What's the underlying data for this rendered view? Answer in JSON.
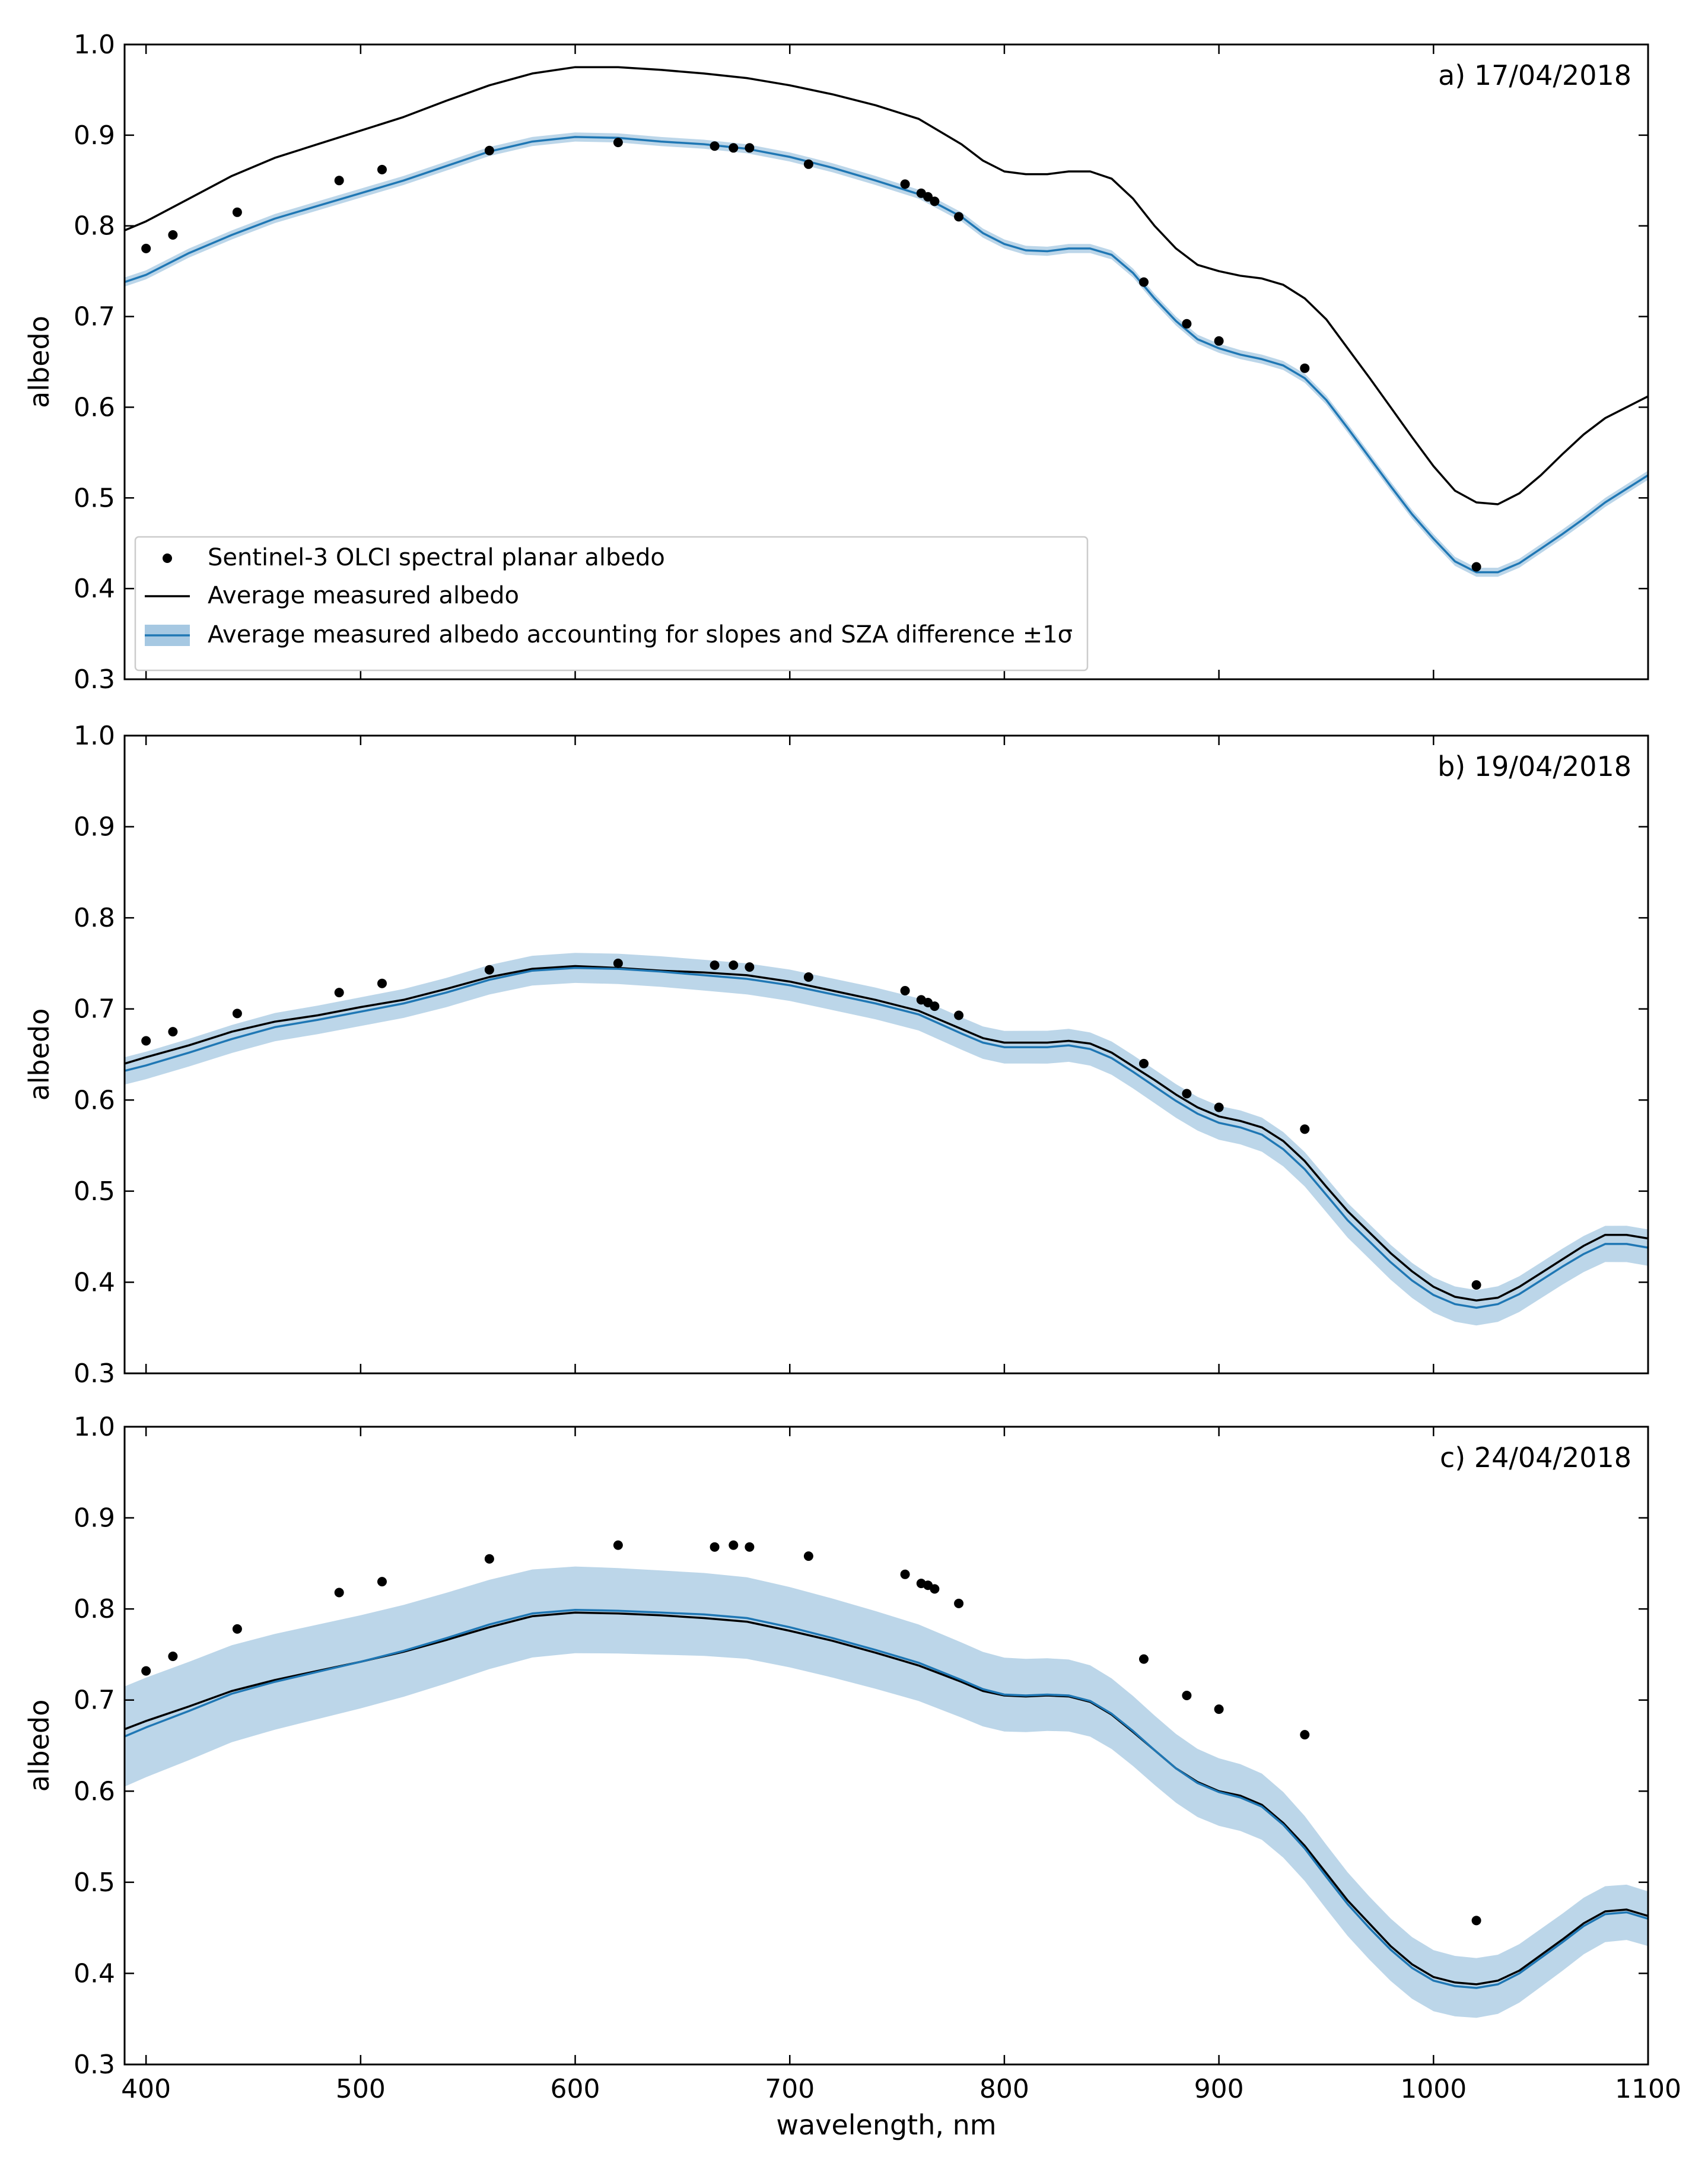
{
  "chart_data": {
    "type": "line",
    "xlabel": "wavelength, nm",
    "ylabel": "albedo",
    "xlim": [
      390,
      1100
    ],
    "ylim": [
      0.3,
      1.0
    ],
    "xticks": [
      400,
      500,
      600,
      700,
      800,
      900,
      1000,
      1100
    ],
    "yticks": [
      0.3,
      0.4,
      0.5,
      0.6,
      0.7,
      0.8,
      0.9,
      1.0
    ],
    "legend": {
      "placement": "lower-left of panel a",
      "entries": [
        "Sentinel-3 OLCI spectral planar albedo",
        "Average measured albedo",
        "Average measured albedo accounting for slopes and SZA difference ±1σ"
      ]
    },
    "colors": {
      "measured": "#000000",
      "corrected": "#1f77b4",
      "band": "#a6c8e2",
      "olci": "#000000"
    },
    "olci_wavelengths": [
      400,
      412.5,
      442.5,
      490,
      510,
      560,
      620,
      665,
      673.75,
      681.25,
      708.75,
      753.75,
      761.25,
      764.375,
      767.5,
      778.75,
      865,
      885,
      900,
      940,
      1020
    ],
    "panels": [
      {
        "label": "a) 17/04/2018",
        "olci_albedo": [
          0.775,
          0.79,
          0.815,
          0.85,
          0.862,
          0.883,
          0.892,
          0.888,
          0.886,
          0.886,
          0.868,
          0.846,
          0.836,
          0.832,
          0.827,
          0.81,
          0.738,
          0.692,
          0.673,
          0.643,
          0.424
        ],
        "measured": {
          "x": [
            390,
            400,
            420,
            440,
            460,
            480,
            500,
            520,
            540,
            560,
            580,
            600,
            620,
            640,
            660,
            680,
            700,
            720,
            740,
            760,
            780,
            790,
            800,
            810,
            820,
            830,
            840,
            850,
            860,
            870,
            880,
            890,
            900,
            910,
            920,
            930,
            940,
            950,
            960,
            970,
            980,
            990,
            1000,
            1010,
            1020,
            1030,
            1040,
            1050,
            1060,
            1070,
            1080,
            1090,
            1100
          ],
          "y": [
            0.795,
            0.805,
            0.83,
            0.855,
            0.875,
            0.89,
            0.905,
            0.92,
            0.938,
            0.955,
            0.968,
            0.975,
            0.975,
            0.972,
            0.968,
            0.963,
            0.955,
            0.945,
            0.933,
            0.918,
            0.89,
            0.872,
            0.86,
            0.857,
            0.857,
            0.86,
            0.86,
            0.852,
            0.83,
            0.8,
            0.775,
            0.757,
            0.75,
            0.745,
            0.742,
            0.735,
            0.72,
            0.697,
            0.665,
            0.633,
            0.6,
            0.567,
            0.535,
            0.508,
            0.495,
            0.493,
            0.505,
            0.525,
            0.548,
            0.57,
            0.588,
            0.6,
            0.612
          ]
        },
        "corrected": {
          "x": [
            390,
            400,
            420,
            440,
            460,
            480,
            500,
            520,
            540,
            560,
            580,
            600,
            620,
            640,
            660,
            680,
            700,
            720,
            740,
            760,
            780,
            790,
            800,
            810,
            820,
            830,
            840,
            850,
            860,
            870,
            880,
            890,
            900,
            910,
            920,
            930,
            940,
            950,
            960,
            970,
            980,
            990,
            1000,
            1010,
            1020,
            1030,
            1040,
            1050,
            1060,
            1070,
            1080,
            1090,
            1100
          ],
          "y": [
            0.738,
            0.746,
            0.77,
            0.79,
            0.808,
            0.822,
            0.836,
            0.85,
            0.866,
            0.882,
            0.893,
            0.898,
            0.897,
            0.893,
            0.89,
            0.885,
            0.876,
            0.864,
            0.85,
            0.835,
            0.81,
            0.792,
            0.78,
            0.773,
            0.772,
            0.775,
            0.775,
            0.768,
            0.748,
            0.72,
            0.695,
            0.675,
            0.665,
            0.658,
            0.653,
            0.646,
            0.632,
            0.608,
            0.577,
            0.545,
            0.513,
            0.482,
            0.455,
            0.43,
            0.418,
            0.418,
            0.428,
            0.444,
            0.46,
            0.477,
            0.495,
            0.51,
            0.525
          ]
        },
        "sigma": [
          0.005,
          0.005
        ]
      },
      {
        "label": "b) 19/04/2018",
        "olci_albedo": [
          0.665,
          0.675,
          0.695,
          0.718,
          0.728,
          0.743,
          0.75,
          0.748,
          0.748,
          0.746,
          0.735,
          0.72,
          0.71,
          0.707,
          0.703,
          0.693,
          0.64,
          0.607,
          0.592,
          0.568,
          0.397
        ],
        "measured": {
          "x": [
            390,
            400,
            420,
            440,
            460,
            480,
            500,
            520,
            540,
            560,
            580,
            600,
            620,
            640,
            660,
            680,
            700,
            720,
            740,
            760,
            780,
            790,
            800,
            810,
            820,
            830,
            840,
            850,
            860,
            870,
            880,
            890,
            900,
            910,
            920,
            930,
            940,
            950,
            960,
            970,
            980,
            990,
            1000,
            1010,
            1020,
            1030,
            1040,
            1050,
            1060,
            1070,
            1080,
            1090,
            1100
          ],
          "y": [
            0.64,
            0.647,
            0.66,
            0.675,
            0.686,
            0.693,
            0.702,
            0.71,
            0.722,
            0.735,
            0.744,
            0.747,
            0.745,
            0.742,
            0.74,
            0.737,
            0.73,
            0.72,
            0.71,
            0.698,
            0.678,
            0.668,
            0.663,
            0.663,
            0.663,
            0.665,
            0.662,
            0.652,
            0.637,
            0.622,
            0.606,
            0.592,
            0.582,
            0.577,
            0.57,
            0.555,
            0.533,
            0.505,
            0.478,
            0.455,
            0.432,
            0.412,
            0.395,
            0.384,
            0.38,
            0.383,
            0.395,
            0.41,
            0.425,
            0.44,
            0.452,
            0.452,
            0.448
          ]
        },
        "corrected": {
          "x": [
            390,
            400,
            420,
            440,
            460,
            480,
            500,
            520,
            540,
            560,
            580,
            600,
            620,
            640,
            660,
            680,
            700,
            720,
            740,
            760,
            780,
            790,
            800,
            810,
            820,
            830,
            840,
            850,
            860,
            870,
            880,
            890,
            900,
            910,
            920,
            930,
            940,
            950,
            960,
            970,
            980,
            990,
            1000,
            1010,
            1020,
            1030,
            1040,
            1050,
            1060,
            1070,
            1080,
            1090,
            1100
          ],
          "y": [
            0.632,
            0.638,
            0.652,
            0.667,
            0.68,
            0.688,
            0.697,
            0.706,
            0.718,
            0.732,
            0.742,
            0.745,
            0.744,
            0.741,
            0.737,
            0.733,
            0.726,
            0.716,
            0.706,
            0.694,
            0.673,
            0.663,
            0.658,
            0.658,
            0.658,
            0.66,
            0.656,
            0.646,
            0.631,
            0.615,
            0.599,
            0.585,
            0.575,
            0.57,
            0.562,
            0.546,
            0.524,
            0.496,
            0.468,
            0.445,
            0.422,
            0.402,
            0.386,
            0.376,
            0.372,
            0.376,
            0.387,
            0.402,
            0.417,
            0.431,
            0.442,
            0.442,
            0.438
          ]
        },
        "sigma": [
          0.015,
          0.02
        ]
      },
      {
        "label": "c) 24/04/2018",
        "olci_albedo": [
          0.732,
          0.748,
          0.778,
          0.818,
          0.83,
          0.855,
          0.87,
          0.868,
          0.87,
          0.868,
          0.858,
          0.838,
          0.828,
          0.826,
          0.822,
          0.806,
          0.745,
          0.705,
          0.69,
          0.662,
          0.458
        ],
        "measured": {
          "x": [
            390,
            400,
            420,
            440,
            460,
            480,
            500,
            520,
            540,
            560,
            580,
            600,
            620,
            640,
            660,
            680,
            700,
            720,
            740,
            760,
            780,
            790,
            800,
            810,
            820,
            830,
            840,
            850,
            860,
            870,
            880,
            890,
            900,
            910,
            920,
            930,
            940,
            950,
            960,
            970,
            980,
            990,
            1000,
            1010,
            1020,
            1030,
            1040,
            1050,
            1060,
            1070,
            1080,
            1090,
            1100
          ],
          "y": [
            0.668,
            0.677,
            0.693,
            0.71,
            0.722,
            0.732,
            0.742,
            0.753,
            0.766,
            0.78,
            0.792,
            0.796,
            0.795,
            0.793,
            0.79,
            0.786,
            0.776,
            0.765,
            0.752,
            0.738,
            0.72,
            0.71,
            0.705,
            0.704,
            0.705,
            0.704,
            0.698,
            0.684,
            0.665,
            0.645,
            0.625,
            0.61,
            0.6,
            0.595,
            0.585,
            0.565,
            0.54,
            0.51,
            0.48,
            0.455,
            0.43,
            0.41,
            0.396,
            0.39,
            0.388,
            0.392,
            0.403,
            0.42,
            0.437,
            0.455,
            0.468,
            0.47,
            0.463
          ]
        },
        "corrected": {
          "x": [
            390,
            400,
            420,
            440,
            460,
            480,
            500,
            520,
            540,
            560,
            580,
            600,
            620,
            640,
            660,
            680,
            700,
            720,
            740,
            760,
            780,
            790,
            800,
            810,
            820,
            830,
            840,
            850,
            860,
            870,
            880,
            890,
            900,
            910,
            920,
            930,
            940,
            950,
            960,
            970,
            980,
            990,
            1000,
            1010,
            1020,
            1030,
            1040,
            1050,
            1060,
            1070,
            1080,
            1090,
            1100
          ],
          "y": [
            0.66,
            0.67,
            0.688,
            0.707,
            0.72,
            0.731,
            0.742,
            0.754,
            0.768,
            0.783,
            0.795,
            0.799,
            0.798,
            0.796,
            0.794,
            0.79,
            0.78,
            0.768,
            0.755,
            0.741,
            0.722,
            0.712,
            0.706,
            0.705,
            0.706,
            0.705,
            0.699,
            0.685,
            0.666,
            0.645,
            0.625,
            0.609,
            0.599,
            0.593,
            0.583,
            0.563,
            0.537,
            0.506,
            0.476,
            0.45,
            0.426,
            0.406,
            0.392,
            0.386,
            0.384,
            0.388,
            0.4,
            0.417,
            0.434,
            0.452,
            0.465,
            0.467,
            0.46
          ]
        },
        "sigma": [
          0.055,
          0.03
        ]
      }
    ]
  }
}
